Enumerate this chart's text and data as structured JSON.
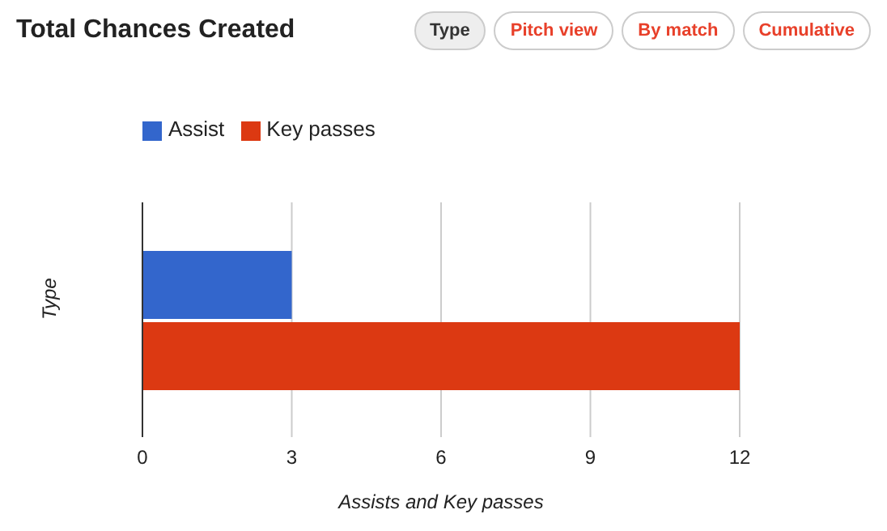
{
  "chart_data": {
    "type": "bar",
    "orientation": "horizontal",
    "title": "Total Chances Created",
    "annotations": [
      "Type",
      "Pitch view",
      "By match",
      "Cumulative"
    ],
    "ylabel": "Type",
    "xlabel": "Assists and Key passes",
    "categories": [
      null
    ],
    "series": [
      {
        "name": "Assist",
        "color": "#3366cc",
        "values": [
          3
        ]
      },
      {
        "name": "Key passes",
        "color": "#dc3912",
        "values": [
          12
        ]
      }
    ],
    "xlim": [
      0,
      12
    ],
    "xticks": [
      0,
      3,
      6,
      9,
      12
    ],
    "grid": "x",
    "legend": "top left"
  }
}
